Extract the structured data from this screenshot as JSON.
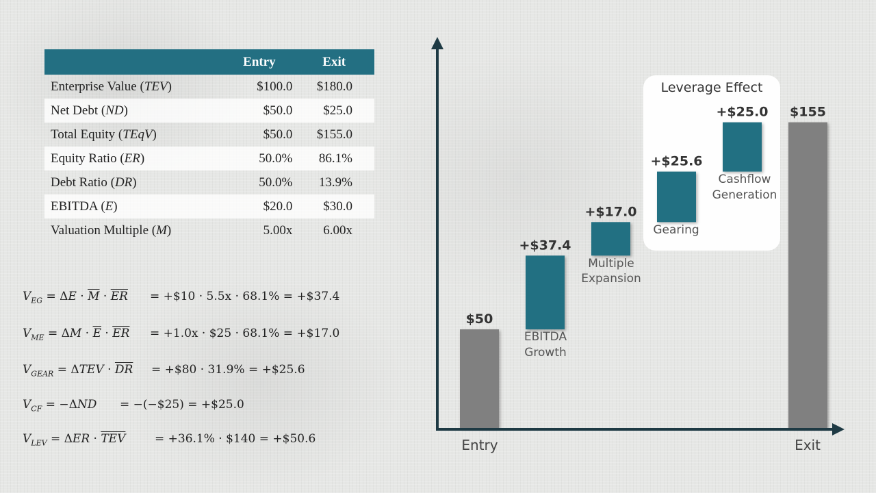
{
  "table": {
    "headers": [
      "",
      "Entry",
      "Exit"
    ],
    "rows": [
      {
        "label": "Enterprise Value (",
        "var": "TEV",
        "entry": "$100.0",
        "exit": "$180.0"
      },
      {
        "label": "Net Debt (",
        "var": "ND",
        "entry": "$50.0",
        "exit": "$25.0"
      },
      {
        "label": "Total Equity (",
        "var": "TEqV",
        "entry": "$50.0",
        "exit": "$155.0"
      },
      {
        "label": "Equity Ratio (",
        "var": "ER",
        "entry": "50.0%",
        "exit": "86.1%"
      },
      {
        "label": "Debt Ratio (",
        "var": "DR",
        "entry": "50.0%",
        "exit": "13.9%"
      },
      {
        "label": "EBITDA (",
        "var": "E",
        "entry": "$20.0",
        "exit": "$30.0"
      },
      {
        "label": "Valuation Multiple (",
        "var": "M",
        "entry": "5.00x",
        "exit": "6.00x"
      }
    ]
  },
  "formulas": {
    "eg": {
      "sub": "EG",
      "rhs": "= +$10 · 5.5x · 68.1% = +$37.4"
    },
    "me": {
      "sub": "ME",
      "rhs": "= +1.0x · $25 · 68.1% = +$17.0"
    },
    "gear": {
      "sub": "GEAR",
      "rhs": "= +$80 · 31.9% = +$25.6"
    },
    "cf": {
      "sub": "CF",
      "rhs": "= −(−$25) = +$25.0"
    },
    "lev": {
      "sub": "LEV",
      "rhs": "= +36.1% · $140 = +$50.6"
    }
  },
  "chart_data": {
    "type": "bar",
    "subtype": "waterfall",
    "categories": [
      "Entry",
      "EBITDA Growth",
      "Multiple Expansion",
      "Gearing",
      "Cashflow Generation",
      "Exit"
    ],
    "values": [
      50,
      37.4,
      17.0,
      25.6,
      25.0,
      155
    ],
    "data_labels": [
      "$50",
      "+$37.4",
      "+$17.0",
      "+$25.6",
      "+$25.0",
      "$155"
    ],
    "axis_labels": [
      "Entry",
      "Exit"
    ],
    "callout_title": "Leverage Effect",
    "colors": {
      "total": "#808080",
      "step": "#236f82",
      "axis": "#1e3a44"
    }
  }
}
